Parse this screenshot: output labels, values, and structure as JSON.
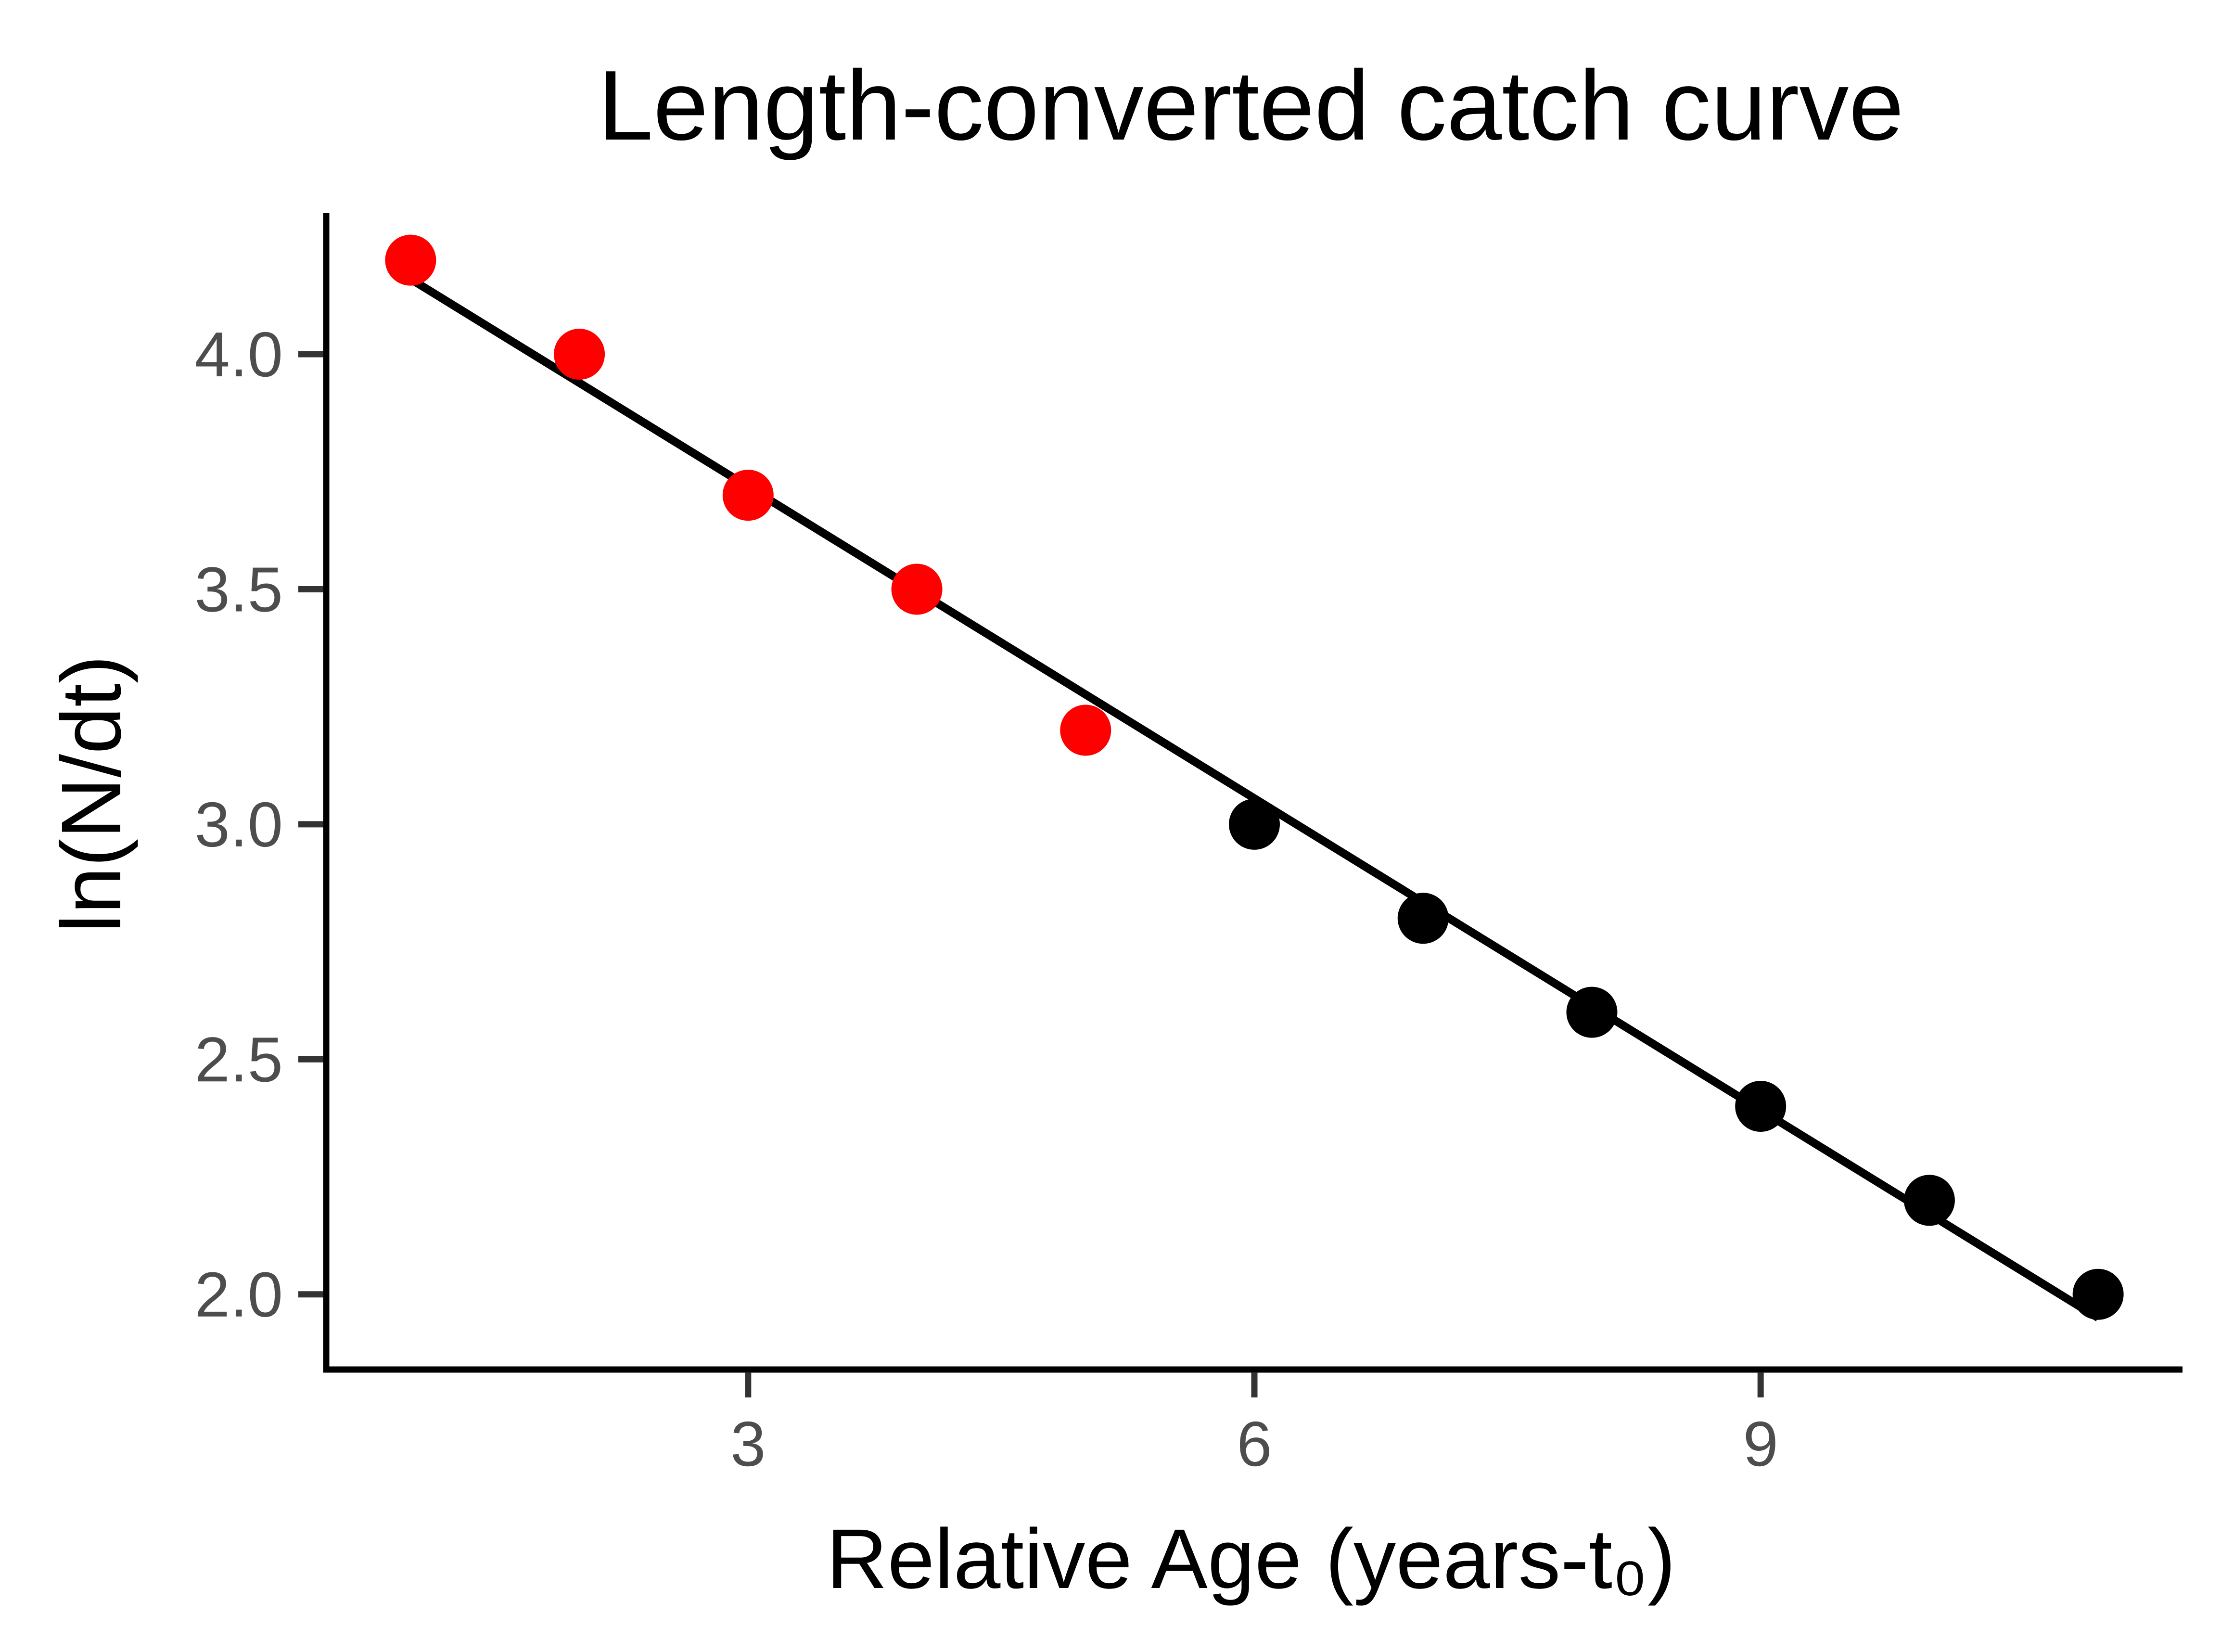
{
  "chart_data": {
    "type": "scatter",
    "title": "Length-converted catch curve",
    "xlabel": "Relative Age (years-t₀)",
    "ylabel": "ln(N/dt)",
    "xlim": [
      0.5,
      11.5
    ],
    "ylim": [
      1.84,
      4.3
    ],
    "x_ticks": [
      3,
      6,
      9
    ],
    "x_tick_labels": [
      "3",
      "6",
      "9"
    ],
    "y_ticks": [
      2.0,
      2.5,
      3.0,
      3.5,
      4.0
    ],
    "y_tick_labels": [
      "2.0",
      "2.5",
      "3.0",
      "3.5",
      "4.0"
    ],
    "grid": false,
    "legend": "none",
    "points": [
      {
        "x": 1,
        "y": 4.2,
        "color": "#ff0000"
      },
      {
        "x": 2,
        "y": 4.0,
        "color": "#ff0000"
      },
      {
        "x": 3,
        "y": 3.7,
        "color": "#ff0000"
      },
      {
        "x": 4,
        "y": 3.5,
        "color": "#ff0000"
      },
      {
        "x": 5,
        "y": 3.2,
        "color": "#ff0000"
      },
      {
        "x": 6,
        "y": 3.0,
        "color": "#000000"
      },
      {
        "x": 7,
        "y": 2.8,
        "color": "#000000"
      },
      {
        "x": 8,
        "y": 2.6,
        "color": "#000000"
      },
      {
        "x": 9,
        "y": 2.4,
        "color": "#000000"
      },
      {
        "x": 10,
        "y": 2.2,
        "color": "#000000"
      },
      {
        "x": 11,
        "y": 2.0,
        "color": "#000000"
      }
    ],
    "fit_line": {
      "x": [
        1,
        11
      ],
      "y": [
        4.16,
        1.95
      ],
      "color": "#000000"
    }
  }
}
